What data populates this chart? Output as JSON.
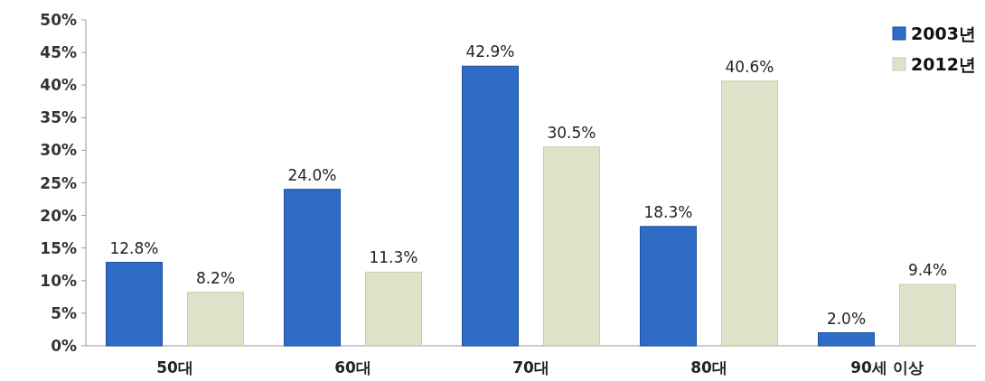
{
  "chart_data": {
    "type": "bar",
    "categories": [
      "50대",
      "60대",
      "70대",
      "80대",
      "90세 이상"
    ],
    "series": [
      {
        "name": "2003년",
        "color": "#2f6cc6",
        "values": [
          12.8,
          24.0,
          42.9,
          18.3,
          2.0
        ],
        "value_labels": [
          "12.8%",
          "24.0%",
          "42.9%",
          "18.3%",
          "2.0%"
        ]
      },
      {
        "name": "2012년",
        "color": "#dfe2c9",
        "values": [
          8.2,
          11.3,
          30.5,
          40.6,
          9.4
        ],
        "value_labels": [
          "8.2%",
          "11.3%",
          "30.5%",
          "40.6%",
          "9.4%"
        ]
      }
    ],
    "ylim": [
      0,
      50
    ],
    "yticks": [
      {
        "value": 0,
        "label": "0%"
      },
      {
        "value": 5,
        "label": "5%"
      },
      {
        "value": 10,
        "label": "10%"
      },
      {
        "value": 15,
        "label": "15%"
      },
      {
        "value": 20,
        "label": "20%"
      },
      {
        "value": 25,
        "label": "25%"
      },
      {
        "value": 30,
        "label": "30%"
      },
      {
        "value": 35,
        "label": "35%"
      },
      {
        "value": 40,
        "label": "40%"
      },
      {
        "value": 45,
        "label": "45%"
      },
      {
        "value": 50,
        "label": "50%"
      }
    ],
    "legend": "top right",
    "grid": false
  }
}
